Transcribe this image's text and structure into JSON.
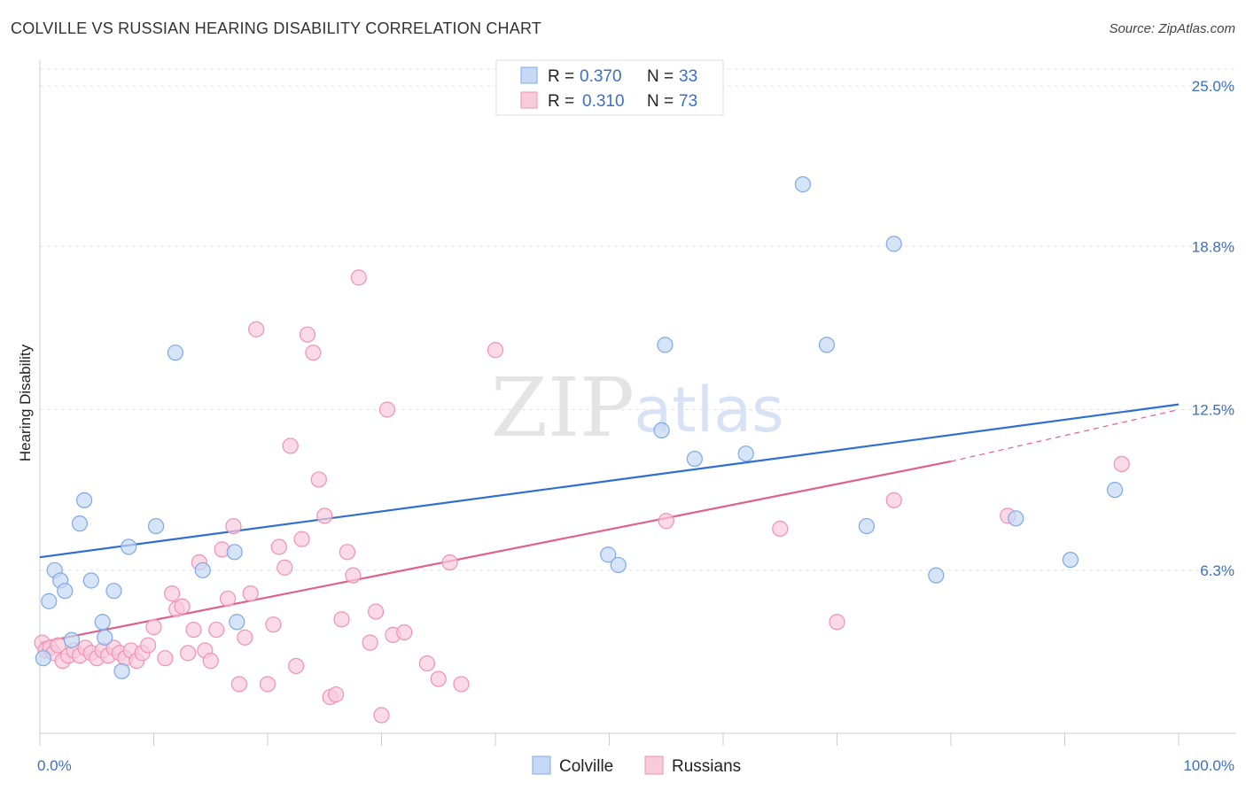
{
  "chart_data": {
    "type": "scatter",
    "title": "COLVILLE VS RUSSIAN HEARING DISABILITY CORRELATION CHART",
    "source": "Source: ZipAtlas.com",
    "ylabel": "Hearing Disability",
    "xlabel": "",
    "xlim": [
      0,
      100
    ],
    "ylim": [
      0,
      25.0
    ],
    "x_tick_labels": [
      {
        "value": 0,
        "label": "0.0%"
      },
      {
        "value": 100,
        "label": "100.0%"
      }
    ],
    "y_ticks": [
      {
        "value": 6.3,
        "label": "6.3%"
      },
      {
        "value": 12.5,
        "label": "12.5%"
      },
      {
        "value": 18.8,
        "label": "18.8%"
      },
      {
        "value": 25.0,
        "label": "25.0%"
      }
    ],
    "watermark": {
      "zip": "ZIP",
      "atlas": "atlas"
    },
    "legend": [
      {
        "series": "Colville",
        "r_label": "R =",
        "r": "0.370",
        "n_label": "N =",
        "n": "33"
      },
      {
        "series": "Russians",
        "r_label": "R =",
        "r": "0.310",
        "n_label": "N =",
        "n": "73"
      }
    ],
    "series": [
      {
        "name": "Colville",
        "color": "#7fa8e6",
        "fill": "#c5d8f5",
        "line_color": "#2e6fd1",
        "trend": {
          "x0": 0,
          "y0": 6.8,
          "x1": 100,
          "y1": 12.7
        },
        "points": [
          [
            0.3,
            2.9
          ],
          [
            0.8,
            5.1
          ],
          [
            1.3,
            6.3
          ],
          [
            1.8,
            5.9
          ],
          [
            2.2,
            5.5
          ],
          [
            2.8,
            3.6
          ],
          [
            3.5,
            8.1
          ],
          [
            3.9,
            9.0
          ],
          [
            4.5,
            5.9
          ],
          [
            5.5,
            4.3
          ],
          [
            5.7,
            3.7
          ],
          [
            6.5,
            5.5
          ],
          [
            7.2,
            2.4
          ],
          [
            7.8,
            7.2
          ],
          [
            10.2,
            8.0
          ],
          [
            11.9,
            14.7
          ],
          [
            14.3,
            6.3
          ],
          [
            17.1,
            7.0
          ],
          [
            17.3,
            4.3
          ],
          [
            49.9,
            6.9
          ],
          [
            50.8,
            6.5
          ],
          [
            54.6,
            11.7
          ],
          [
            54.9,
            15.0
          ],
          [
            57.5,
            10.6
          ],
          [
            62.0,
            10.8
          ],
          [
            67.0,
            21.2
          ],
          [
            69.1,
            15.0
          ],
          [
            72.6,
            8.0
          ],
          [
            75.0,
            18.9
          ],
          [
            78.7,
            6.1
          ],
          [
            85.7,
            8.3
          ],
          [
            90.5,
            6.7
          ],
          [
            94.4,
            9.4
          ]
        ]
      },
      {
        "name": "Russians",
        "color": "#ee93b2",
        "fill": "#f8cbdb",
        "line_color": "#e0608c",
        "trend": {
          "x0": 0,
          "y0": 3.5,
          "x1": 80,
          "y1": 10.5
        },
        "trend_dashed_end": {
          "x1": 100,
          "y1": 12.5
        },
        "points": [
          [
            0.2,
            3.5
          ],
          [
            0.5,
            3.2
          ],
          [
            0.9,
            3.3
          ],
          [
            1.2,
            3.1
          ],
          [
            1.6,
            3.4
          ],
          [
            2.0,
            2.8
          ],
          [
            2.5,
            3.0
          ],
          [
            3.0,
            3.2
          ],
          [
            3.5,
            3.0
          ],
          [
            4.0,
            3.3
          ],
          [
            4.5,
            3.1
          ],
          [
            5.0,
            2.9
          ],
          [
            5.5,
            3.2
          ],
          [
            6.0,
            3.0
          ],
          [
            6.5,
            3.3
          ],
          [
            7.0,
            3.1
          ],
          [
            7.5,
            2.9
          ],
          [
            8.0,
            3.2
          ],
          [
            8.5,
            2.8
          ],
          [
            9.0,
            3.1
          ],
          [
            9.5,
            3.4
          ],
          [
            10.0,
            4.1
          ],
          [
            11.0,
            2.9
          ],
          [
            11.6,
            5.4
          ],
          [
            12.0,
            4.8
          ],
          [
            12.5,
            4.9
          ],
          [
            13.0,
            3.1
          ],
          [
            13.5,
            4.0
          ],
          [
            14.0,
            6.6
          ],
          [
            14.5,
            3.2
          ],
          [
            15.0,
            2.8
          ],
          [
            15.5,
            4.0
          ],
          [
            16.0,
            7.1
          ],
          [
            16.5,
            5.2
          ],
          [
            17.0,
            8.0
          ],
          [
            17.5,
            1.9
          ],
          [
            18.0,
            3.7
          ],
          [
            18.5,
            5.4
          ],
          [
            19.0,
            15.6
          ],
          [
            20.0,
            1.9
          ],
          [
            20.5,
            4.2
          ],
          [
            21.0,
            7.2
          ],
          [
            21.5,
            6.4
          ],
          [
            22.0,
            11.1
          ],
          [
            22.5,
            2.6
          ],
          [
            23.0,
            7.5
          ],
          [
            23.5,
            15.4
          ],
          [
            24.0,
            14.7
          ],
          [
            24.5,
            9.8
          ],
          [
            25.0,
            8.4
          ],
          [
            25.5,
            1.4
          ],
          [
            26.0,
            1.5
          ],
          [
            26.5,
            4.4
          ],
          [
            27.0,
            7.0
          ],
          [
            27.5,
            6.1
          ],
          [
            28.0,
            17.6
          ],
          [
            29.0,
            3.5
          ],
          [
            29.5,
            4.7
          ],
          [
            30.0,
            0.7
          ],
          [
            30.5,
            12.5
          ],
          [
            31.0,
            3.8
          ],
          [
            32.0,
            3.9
          ],
          [
            34.0,
            2.7
          ],
          [
            35.0,
            2.1
          ],
          [
            36.0,
            6.6
          ],
          [
            37.0,
            1.9
          ],
          [
            40.0,
            14.8
          ],
          [
            55.0,
            8.2
          ],
          [
            65.0,
            7.9
          ],
          [
            70.0,
            4.3
          ],
          [
            75.0,
            9.0
          ],
          [
            85.0,
            8.4
          ],
          [
            95.0,
            10.4
          ]
        ]
      }
    ]
  }
}
